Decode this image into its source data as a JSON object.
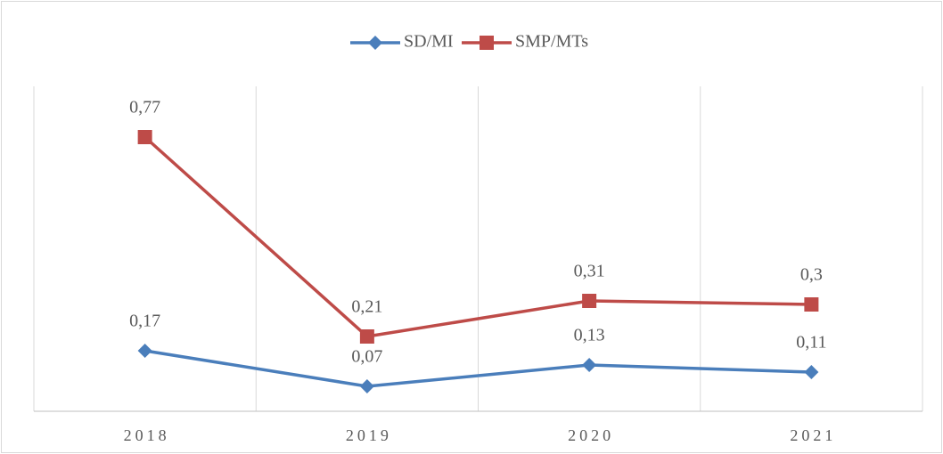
{
  "chart_data": {
    "type": "line",
    "categories": [
      "2018",
      "2019",
      "2020",
      "2021"
    ],
    "series": [
      {
        "name": "SD/MI",
        "color": "#4a7ebb",
        "marker": "diamond",
        "values": [
          0.17,
          0.07,
          0.13,
          0.11
        ],
        "value_labels": [
          "0,17",
          "0,07",
          "0,13",
          "0,11"
        ]
      },
      {
        "name": "SMP/MTs",
        "color": "#be4b48",
        "marker": "square",
        "values": [
          0.77,
          0.21,
          0.31,
          0.3
        ],
        "value_labels": [
          "0,77",
          "0,21",
          "0,31",
          "0,3"
        ]
      }
    ],
    "ylim": [
      0,
      0.9
    ],
    "grid": true,
    "legend": "top"
  }
}
